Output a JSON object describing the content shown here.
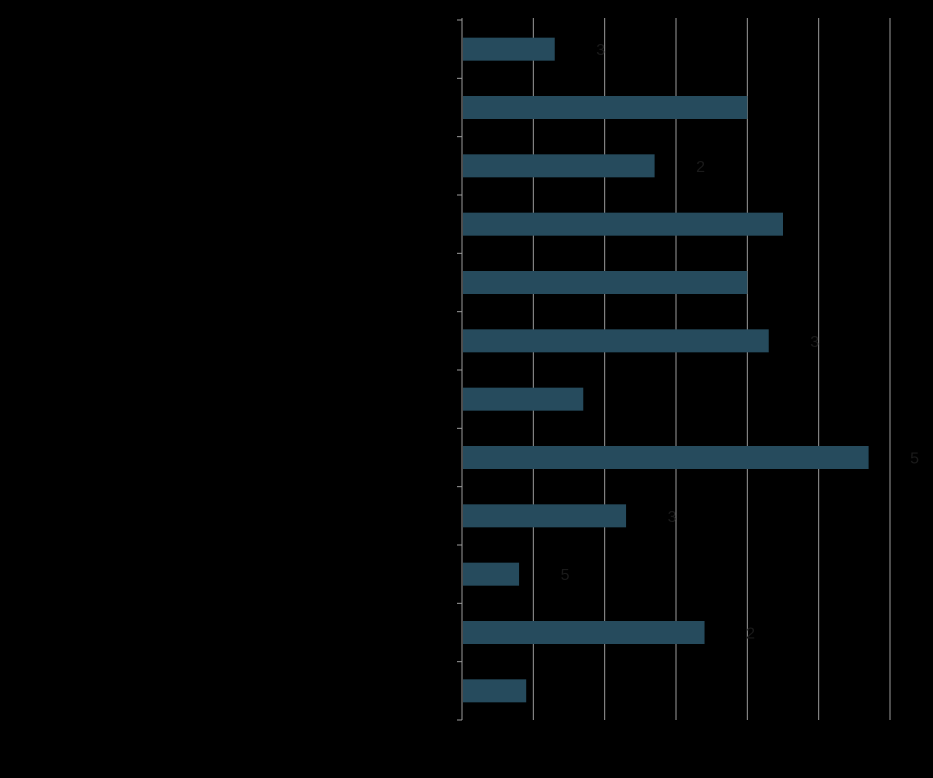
{
  "chart_data": {
    "type": "bar",
    "orientation": "horizontal",
    "categories": [
      "",
      "",
      "",
      "",
      "",
      "",
      "",
      "",
      "",
      "",
      "",
      ""
    ],
    "values": [
      1.3,
      4.0,
      2.7,
      4.5,
      4.0,
      4.3,
      1.7,
      5.7,
      2.3,
      0.8,
      3.4,
      0.9
    ],
    "data_labels": [
      "3",
      "",
      "2",
      "",
      "",
      "3",
      "",
      "5",
      "3",
      "5",
      "2",
      ""
    ],
    "xlim": [
      0,
      6
    ],
    "grid": true,
    "legend": "none",
    "title": "",
    "xlabel": "",
    "ylabel": ""
  },
  "colors": {
    "background": "#000000",
    "bar": "#264b5d",
    "gridline": "#9a9a9a",
    "axis": "#9a9a9a",
    "label": "#1a1a1a"
  }
}
